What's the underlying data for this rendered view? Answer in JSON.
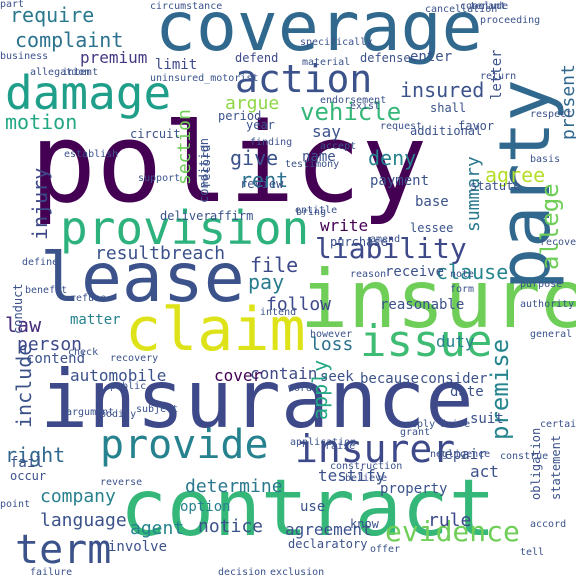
{
  "words": [
    {
      "text": "policy",
      "color": "#440154",
      "vertical": false
    },
    {
      "text": "coverage",
      "color": "#30688e",
      "vertical": false
    },
    {
      "text": "insurance",
      "color": "#3e4989",
      "vertical": false
    },
    {
      "text": "contract",
      "color": "#35b779",
      "vertical": false
    },
    {
      "text": "insure",
      "color": "#6ece58",
      "vertical": false
    },
    {
      "text": "lease",
      "color": "#3b528b",
      "vertical": false
    },
    {
      "text": "party",
      "color": "#31688e",
      "vertical": true
    },
    {
      "text": "claim",
      "color": "#dde318",
      "vertical": false
    },
    {
      "text": "damage",
      "color": "#1f9e89",
      "vertical": false
    },
    {
      "text": "provision",
      "color": "#2db27d",
      "vertical": false
    },
    {
      "text": "issue",
      "color": "#3fbc73",
      "vertical": false
    },
    {
      "text": "action",
      "color": "#3b528b",
      "vertical": false
    },
    {
      "text": "provide",
      "color": "#26828e",
      "vertical": false
    },
    {
      "text": "insurer",
      "color": "#3e4989",
      "vertical": false
    },
    {
      "text": "term",
      "color": "#3b528b",
      "vertical": false
    },
    {
      "text": "liability",
      "color": "#3e4989",
      "vertical": false
    },
    {
      "text": "evidence",
      "color": "#6ece58",
      "vertical": false
    },
    {
      "text": "vehicle",
      "color": "#35b779",
      "vertical": false
    },
    {
      "text": "premise",
      "color": "#25848e",
      "vertical": true
    },
    {
      "text": "complaint",
      "color": "#2c728e",
      "vertical": false
    },
    {
      "text": "require",
      "color": "#2a788e",
      "vertical": false
    },
    {
      "text": "resultbreach",
      "color": "#3b528b",
      "vertical": false
    },
    {
      "text": "allege",
      "color": "#6ece58",
      "vertical": true
    },
    {
      "text": "injury",
      "color": "#3e4989",
      "vertical": true
    },
    {
      "text": "motion",
      "color": "#22a884",
      "vertical": false
    },
    {
      "text": "company",
      "color": "#27808e",
      "vertical": false
    },
    {
      "text": "right",
      "color": "#31688e",
      "vertical": false
    },
    {
      "text": "law",
      "color": "#472d7b",
      "vertical": false
    },
    {
      "text": "premium",
      "color": "#443a83",
      "vertical": false
    },
    {
      "text": "file",
      "color": "#3e4989",
      "vertical": false
    },
    {
      "text": "pay",
      "color": "#287c8e",
      "vertical": false
    },
    {
      "text": "rent",
      "color": "#2c728e",
      "vertical": false
    },
    {
      "text": "give",
      "color": "#3b528b",
      "vertical": false
    },
    {
      "text": "argue",
      "color": "#8fd744",
      "vertical": false
    },
    {
      "text": "insured",
      "color": "#3b528b",
      "vertical": false
    },
    {
      "text": "deny",
      "color": "#26828e",
      "vertical": false
    },
    {
      "text": "write",
      "color": "#440154",
      "vertical": false
    },
    {
      "text": "follow",
      "color": "#3e4989",
      "vertical": false
    },
    {
      "text": "loss",
      "color": "#2c728e",
      "vertical": false
    },
    {
      "text": "clause",
      "color": "#25848e",
      "vertical": false
    },
    {
      "text": "person",
      "color": "#3e4989",
      "vertical": false
    },
    {
      "text": "language",
      "color": "#3b528b",
      "vertical": false
    },
    {
      "text": "agent",
      "color": "#25848e",
      "vertical": false
    },
    {
      "text": "notice",
      "color": "#3b528b",
      "vertical": false
    },
    {
      "text": "agreement",
      "color": "#3b528b",
      "vertical": false
    },
    {
      "text": "determine",
      "color": "#2a788e",
      "vertical": false
    },
    {
      "text": "rule",
      "color": "#3e4989",
      "vertical": false
    },
    {
      "text": "automobile",
      "color": "#3b528b",
      "vertical": false
    },
    {
      "text": "contain",
      "color": "#3e4989",
      "vertical": false
    },
    {
      "text": "cover",
      "color": "#440154",
      "vertical": false
    },
    {
      "text": "apply",
      "color": "#22a884",
      "vertical": true
    },
    {
      "text": "duty",
      "color": "#26828e",
      "vertical": false
    },
    {
      "text": "agree",
      "color": "#b5de2b",
      "vertical": false
    },
    {
      "text": "present",
      "color": "#31688e",
      "vertical": true
    },
    {
      "text": "section",
      "color": "#6ece58",
      "vertical": true
    },
    {
      "text": "summary",
      "color": "#2a788e",
      "vertical": true
    },
    {
      "text": "limit",
      "color": "#3e4989",
      "vertical": false
    },
    {
      "text": "defend",
      "color": "#3e4989",
      "vertical": false
    },
    {
      "text": "defense",
      "color": "#3b528b",
      "vertical": false
    },
    {
      "text": "enter",
      "color": "#3b528b",
      "vertical": false
    },
    {
      "text": "letter",
      "color": "#3b528b",
      "vertical": true
    },
    {
      "text": "say",
      "color": "#3b528b",
      "vertical": false
    },
    {
      "text": "year",
      "color": "#3b528b",
      "vertical": false
    },
    {
      "text": "shall",
      "color": "#3b528b",
      "vertical": false
    },
    {
      "text": "favor",
      "color": "#3b528b",
      "vertical": false
    },
    {
      "text": "name",
      "color": "#3b528b",
      "vertical": false
    },
    {
      "text": "payment",
      "color": "#3b528b",
      "vertical": false
    },
    {
      "text": "base",
      "color": "#3b528b",
      "vertical": false
    },
    {
      "text": "receive",
      "color": "#3b528b",
      "vertical": false
    },
    {
      "text": "contend",
      "color": "#3b528b",
      "vertical": false
    },
    {
      "text": "include",
      "color": "#3b528b",
      "vertical": true
    },
    {
      "text": "fail",
      "color": "#3b528b",
      "vertical": false
    },
    {
      "text": "act",
      "color": "#3b528b",
      "vertical": false
    },
    {
      "text": "accident",
      "color": "#26828e",
      "vertical": true
    },
    {
      "text": "testify",
      "color": "#3b528b",
      "vertical": false
    },
    {
      "text": "property",
      "color": "#3b528b",
      "vertical": false
    },
    {
      "text": "suit",
      "color": "#3b528b",
      "vertical": false
    },
    {
      "text": "date",
      "color": "#3b528b",
      "vertical": false
    },
    {
      "text": "consider",
      "color": "#3b528b",
      "vertical": false
    },
    {
      "text": "because",
      "color": "#3b528b",
      "vertical": false
    },
    {
      "text": "seek",
      "color": "#3b528b",
      "vertical": false
    },
    {
      "text": "matter",
      "color": "#26828e",
      "vertical": false
    },
    {
      "text": "reasonable",
      "color": "#3b528b",
      "vertical": false
    },
    {
      "text": "conduct",
      "color": "#3b528b",
      "vertical": true
    },
    {
      "text": "repair",
      "color": "#3b528b",
      "vertical": false
    },
    {
      "text": "use",
      "color": "#3b528b",
      "vertical": false
    },
    {
      "text": "know",
      "color": "#3b528b",
      "vertical": false
    },
    {
      "text": "option",
      "color": "#26828e",
      "vertical": false
    },
    {
      "text": "involve",
      "color": "#3b528b",
      "vertical": false
    },
    {
      "text": "circuit",
      "color": "#3b528b",
      "vertical": false
    },
    {
      "text": "review",
      "color": "#3b528b",
      "vertical": false
    },
    {
      "text": "condition",
      "color": "#3b528b",
      "vertical": true
    },
    {
      "text": "record",
      "color": "#3b528b",
      "vertical": true
    },
    {
      "text": "obligation",
      "color": "#3b528b",
      "vertical": true
    },
    {
      "text": "statement",
      "color": "#3b528b",
      "vertical": true
    },
    {
      "text": "declaratory",
      "color": "#3b528b",
      "vertical": false
    },
    {
      "text": "additional",
      "color": "#3b528b",
      "vertical": false
    },
    {
      "text": "period",
      "color": "#3b528b",
      "vertical": false
    },
    {
      "text": "statute",
      "color": "#3b528b",
      "vertical": false
    },
    {
      "text": "lessee",
      "color": "#3b528b",
      "vertical": false
    },
    {
      "text": "however",
      "color": "#3b528b",
      "vertical": false
    },
    {
      "text": "argument",
      "color": "#3b528b",
      "vertical": false
    },
    {
      "text": "reason",
      "color": "#3b528b",
      "vertical": false
    },
    {
      "text": "purchase",
      "color": "#3b528b",
      "vertical": false
    },
    {
      "text": "entitle",
      "color": "#3b528b",
      "vertical": false
    },
    {
      "text": "occur",
      "color": "#3b528b",
      "vertical": false
    },
    {
      "text": "affirm",
      "color": "#3b528b",
      "vertical": false
    },
    {
      "text": "deliver",
      "color": "#3b528b",
      "vertical": false
    },
    {
      "text": "offer",
      "color": "#3b528b",
      "vertical": false
    },
    {
      "text": "tell",
      "color": "#3b528b",
      "vertical": false
    },
    {
      "text": "basis",
      "color": "#3b528b",
      "vertical": false
    },
    {
      "text": "grant",
      "color": "#3b528b",
      "vertical": false
    },
    {
      "text": "intend",
      "color": "#3b528b",
      "vertical": false
    },
    {
      "text": "decision",
      "color": "#3b528b",
      "vertical": false
    },
    {
      "text": "exclusion",
      "color": "#3b528b",
      "vertical": false
    },
    {
      "text": "failure",
      "color": "#3b528b",
      "vertical": false
    },
    {
      "text": "conclude",
      "color": "#3b528b",
      "vertical": false
    },
    {
      "text": "cancellation",
      "color": "#3b528b",
      "vertical": false
    },
    {
      "text": "circumstance",
      "color": "#3b528b",
      "vertical": false
    },
    {
      "text": "business",
      "color": "#3b528b",
      "vertical": false
    },
    {
      "text": "allegation",
      "color": "#3b528b",
      "vertical": false
    },
    {
      "text": "intent",
      "color": "#3b528b",
      "vertical": false
    },
    {
      "text": "uninsured_motorist",
      "color": "#3b528b",
      "vertical": false
    },
    {
      "text": "specifically",
      "color": "#3b528b",
      "vertical": false
    },
    {
      "text": "material",
      "color": "#3b528b",
      "vertical": false
    },
    {
      "text": "return",
      "color": "#3b528b",
      "vertical": false
    },
    {
      "text": "proceeding",
      "color": "#3b528b",
      "vertical": false
    },
    {
      "text": "tenant",
      "color": "#3b528b",
      "vertical": false
    },
    {
      "text": "exist",
      "color": "#3b528b",
      "vertical": false
    },
    {
      "text": "endorsement",
      "color": "#3b528b",
      "vertical": false
    },
    {
      "text": "request",
      "color": "#3b528b",
      "vertical": false
    },
    {
      "text": "respect",
      "color": "#3b528b",
      "vertical": false
    },
    {
      "text": "accept",
      "color": "#3b528b",
      "vertical": false
    },
    {
      "text": "finding",
      "color": "#3b528b",
      "vertical": false
    },
    {
      "text": "testimony",
      "color": "#3b528b",
      "vertical": false
    },
    {
      "text": "establish",
      "color": "#3b528b",
      "vertical": false
    },
    {
      "text": "support",
      "color": "#3b528b",
      "vertical": false
    },
    {
      "text": "bring",
      "color": "#3b528b",
      "vertical": false
    },
    {
      "text": "recover",
      "color": "#3b528b",
      "vertical": false
    },
    {
      "text": "define",
      "color": "#3b528b",
      "vertical": false
    },
    {
      "text": "benefit",
      "color": "#3b528b",
      "vertical": false
    },
    {
      "text": "refuse",
      "color": "#3b528b",
      "vertical": false
    },
    {
      "text": "check",
      "color": "#3b528b",
      "vertical": false
    },
    {
      "text": "recovery",
      "color": "#3b528b",
      "vertical": false
    },
    {
      "text": "public",
      "color": "#3b528b",
      "vertical": false
    },
    {
      "text": "amend",
      "color": "#3b528b",
      "vertical": false
    },
    {
      "text": "note",
      "color": "#3b528b",
      "vertical": false
    },
    {
      "text": "general",
      "color": "#3b528b",
      "vertical": false
    },
    {
      "text": "authority",
      "color": "#3b528b",
      "vertical": false
    },
    {
      "text": "purpose",
      "color": "#3b528b",
      "vertical": false
    },
    {
      "text": "form",
      "color": "#3b528b",
      "vertical": false
    },
    {
      "text": "word",
      "color": "#3b528b",
      "vertical": false
    },
    {
      "text": "certain",
      "color": "#3b528b",
      "vertical": false
    },
    {
      "text": "subject",
      "color": "#3b528b",
      "vertical": false
    },
    {
      "text": "application",
      "color": "#3b528b",
      "vertical": false
    },
    {
      "text": "raise",
      "color": "#3b528b",
      "vertical": false
    },
    {
      "text": "negligence",
      "color": "#3b528b",
      "vertical": false
    },
    {
      "text": "believe",
      "color": "#3b528b",
      "vertical": false
    },
    {
      "text": "construction",
      "color": "#3b528b",
      "vertical": false
    },
    {
      "text": "construe",
      "color": "#3b528b",
      "vertical": false
    },
    {
      "text": "reverse",
      "color": "#3b528b",
      "vertical": false
    },
    {
      "text": "point",
      "color": "#3b528b",
      "vertical": false
    },
    {
      "text": "accord",
      "color": "#3b528b",
      "vertical": false
    },
    {
      "text": "bodily",
      "color": "#3b528b",
      "vertical": false
    },
    {
      "text": "drive",
      "color": "#3b528b",
      "vertical": false
    },
    {
      "text": "reply",
      "color": "#3b528b",
      "vertical": false
    },
    {
      "text": "part",
      "color": "#3b528b",
      "vertical": false
    }
  ]
}
